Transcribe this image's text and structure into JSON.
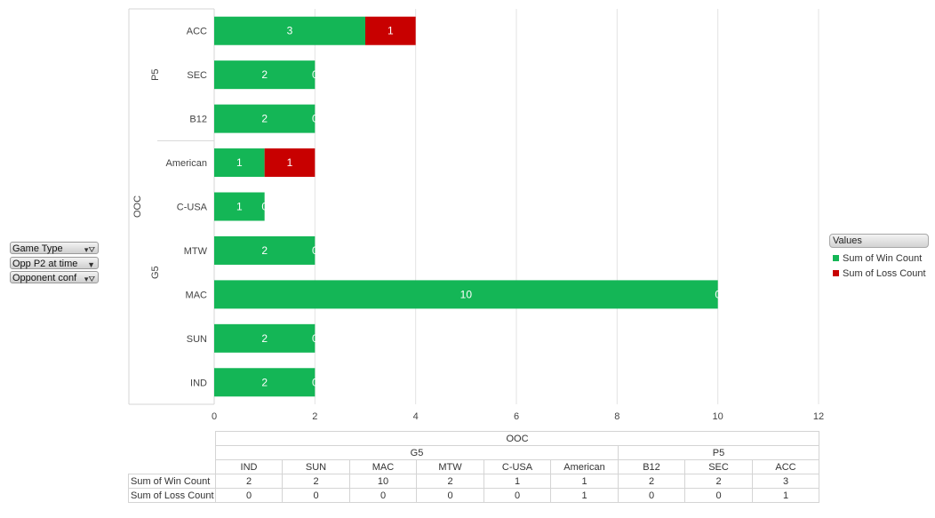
{
  "chart_data": {
    "type": "bar",
    "orientation": "horizontal",
    "stacked": true,
    "categories": [
      "ACC",
      "SEC",
      "B12",
      "American",
      "C-USA",
      "MTW",
      "MAC",
      "SUN",
      "IND"
    ],
    "groups": {
      "outer": "OOC",
      "inner": [
        {
          "name": "P5",
          "categories": [
            "ACC",
            "SEC",
            "B12"
          ]
        },
        {
          "name": "G5",
          "categories": [
            "American",
            "C-USA",
            "MTW",
            "MAC",
            "SUN",
            "IND"
          ]
        }
      ]
    },
    "series": [
      {
        "name": "Sum of Win Count",
        "color": "#14b656",
        "values": [
          3,
          2,
          2,
          1,
          1,
          2,
          10,
          2,
          2
        ]
      },
      {
        "name": "Sum of Loss Count",
        "color": "#c80000",
        "values": [
          1,
          0,
          0,
          1,
          0,
          0,
          0,
          0,
          0
        ]
      }
    ],
    "xticks": [
      0,
      2,
      4,
      6,
      8,
      10,
      12
    ],
    "xlim": [
      0,
      12
    ],
    "grid": true,
    "legend_position": "right",
    "legend_title": "Values"
  },
  "filters": [
    "Game Type",
    "Opp P2 at time",
    "Opponent conf"
  ],
  "table": {
    "top_header": "OOC",
    "groups": [
      {
        "name": "G5",
        "categories": [
          "IND",
          "SUN",
          "MAC",
          "MTW",
          "C-USA",
          "American"
        ]
      },
      {
        "name": "P5",
        "categories": [
          "B12",
          "SEC",
          "ACC"
        ]
      }
    ],
    "rows": [
      {
        "label": "Sum of Win Count",
        "values": [
          "2",
          "2",
          "10",
          "2",
          "1",
          "1",
          "2",
          "2",
          "3"
        ]
      },
      {
        "label": "Sum of Loss Count",
        "values": [
          "0",
          "0",
          "0",
          "0",
          "0",
          "1",
          "0",
          "0",
          "1"
        ]
      }
    ]
  }
}
